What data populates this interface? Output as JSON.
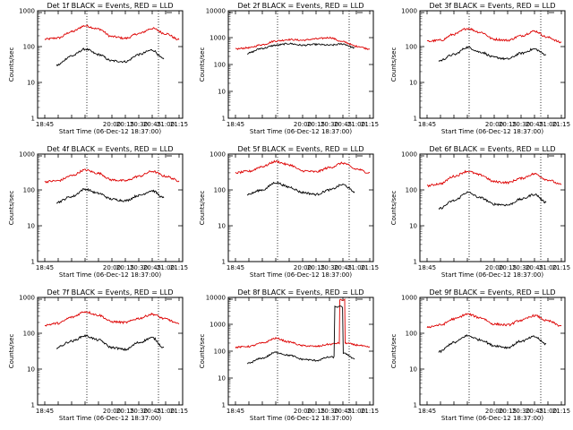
{
  "figure": {
    "time_axis_min": "18:37",
    "time_axis_max": "21:19",
    "x_ticks": [
      "18:45",
      "20:00",
      "20:15",
      "20:30",
      "20:45",
      "21:00",
      "21:15"
    ],
    "y_ticks": [
      "1",
      "10",
      "100",
      "1000"
    ],
    "ylabel": "Counts/sec",
    "xlabel": "Start Time (06-Dec-12 18:37:00)",
    "markers": [
      "19:32",
      "20:52"
    ],
    "colors": {
      "events": "#000000",
      "lld": "#dd0000"
    }
  },
  "chart_data": [
    {
      "type": "line",
      "det": "1f",
      "title": "Det 1f BLACK = Events, RED = LLD",
      "xlabel": "Start Time (06-Dec-12 18:37:00)",
      "ylabel": "Counts/sec",
      "ylim": [
        1,
        1000
      ],
      "series": [
        {
          "name": "LLD",
          "color": "#dd0000",
          "x": [
            "18:45",
            "19:00",
            "19:15",
            "19:30",
            "19:45",
            "20:00",
            "20:15",
            "20:30",
            "20:45",
            "21:00",
            "21:15"
          ],
          "values": [
            160,
            175,
            260,
            380,
            310,
            190,
            170,
            230,
            320,
            230,
            155
          ]
        },
        {
          "name": "Events",
          "color": "#000000",
          "x": [
            "18:58",
            "19:15",
            "19:30",
            "19:45",
            "20:00",
            "20:15",
            "20:30",
            "20:45",
            "20:58"
          ],
          "values": [
            30,
            55,
            85,
            60,
            40,
            38,
            60,
            80,
            45
          ]
        }
      ]
    },
    {
      "type": "line",
      "det": "2f",
      "title": "Det 2f BLACK = Events, RED = LLD",
      "xlabel": "Start Time (06-Dec-12 18:37:00)",
      "ylabel": "Counts/sec",
      "ylim": [
        1,
        10000
      ],
      "series": [
        {
          "name": "LLD",
          "color": "#dd0000",
          "x": [
            "18:45",
            "19:00",
            "19:15",
            "19:30",
            "19:45",
            "20:00",
            "20:15",
            "20:30",
            "20:45",
            "21:00",
            "21:15"
          ],
          "values": [
            380,
            420,
            550,
            750,
            850,
            800,
            900,
            1000,
            700,
            480,
            380
          ]
        },
        {
          "name": "Events",
          "color": "#000000",
          "x": [
            "18:58",
            "19:15",
            "19:30",
            "19:45",
            "20:00",
            "20:15",
            "20:30",
            "20:45",
            "20:58"
          ],
          "values": [
            260,
            400,
            520,
            600,
            520,
            560,
            520,
            580,
            420
          ]
        }
      ]
    },
    {
      "type": "line",
      "det": "3f",
      "title": "Det 3f BLACK = Events, RED = LLD",
      "xlabel": "Start Time (06-Dec-12 18:37:00)",
      "ylabel": "Counts/sec",
      "ylim": [
        1,
        1000
      ],
      "series": [
        {
          "name": "LLD",
          "color": "#dd0000",
          "x": [
            "18:45",
            "19:00",
            "19:15",
            "19:30",
            "19:45",
            "20:00",
            "20:15",
            "20:30",
            "20:45",
            "21:00",
            "21:15"
          ],
          "values": [
            140,
            150,
            220,
            320,
            250,
            160,
            150,
            200,
            270,
            180,
            130
          ]
        },
        {
          "name": "Events",
          "color": "#000000",
          "x": [
            "18:58",
            "19:15",
            "19:30",
            "19:45",
            "20:00",
            "20:15",
            "20:30",
            "20:45",
            "20:58"
          ],
          "values": [
            40,
            60,
            95,
            70,
            50,
            45,
            65,
            85,
            60
          ]
        }
      ]
    },
    {
      "type": "line",
      "det": "4f",
      "title": "Det 4f BLACK = Events, RED = LLD",
      "xlabel": "Start Time (06-Dec-12 18:37:00)",
      "ylabel": "Counts/sec",
      "ylim": [
        1,
        1000
      ],
      "series": [
        {
          "name": "LLD",
          "color": "#dd0000",
          "x": [
            "18:45",
            "19:00",
            "19:15",
            "19:30",
            "19:45",
            "20:00",
            "20:15",
            "20:30",
            "20:45",
            "21:00",
            "21:15"
          ],
          "values": [
            170,
            180,
            250,
            360,
            290,
            190,
            180,
            240,
            330,
            240,
            180
          ]
        },
        {
          "name": "Events",
          "color": "#000000",
          "x": [
            "18:58",
            "19:15",
            "19:30",
            "19:45",
            "20:00",
            "20:15",
            "20:30",
            "20:45",
            "20:58"
          ],
          "values": [
            45,
            65,
            105,
            80,
            55,
            50,
            70,
            95,
            60
          ]
        }
      ]
    },
    {
      "type": "line",
      "det": "5f",
      "title": "Det 5f BLACK = Events, RED = LLD",
      "xlabel": "Start Time (06-Dec-12 18:37:00)",
      "ylabel": "Counts/sec",
      "ylim": [
        1,
        1000
      ],
      "series": [
        {
          "name": "LLD",
          "color": "#dd0000",
          "x": [
            "18:45",
            "19:00",
            "19:15",
            "19:30",
            "19:45",
            "20:00",
            "20:15",
            "20:30",
            "20:45",
            "21:00",
            "21:15"
          ],
          "values": [
            300,
            330,
            450,
            620,
            500,
            340,
            320,
            420,
            560,
            380,
            300
          ]
        },
        {
          "name": "Events",
          "color": "#000000",
          "x": [
            "18:58",
            "19:15",
            "19:30",
            "19:45",
            "20:00",
            "20:15",
            "20:30",
            "20:45",
            "20:58"
          ],
          "values": [
            75,
            100,
            160,
            120,
            85,
            75,
            100,
            140,
            90
          ]
        }
      ]
    },
    {
      "type": "line",
      "det": "6f",
      "title": "Det 6f BLACK = Events, RED = LLD",
      "xlabel": "Start Time (06-Dec-12 18:37:00)",
      "ylabel": "Counts/sec",
      "ylim": [
        1,
        1000
      ],
      "series": [
        {
          "name": "LLD",
          "color": "#dd0000",
          "x": [
            "18:45",
            "19:00",
            "19:15",
            "19:30",
            "19:45",
            "20:00",
            "20:15",
            "20:30",
            "20:45",
            "21:00",
            "21:15"
          ],
          "values": [
            130,
            150,
            240,
            330,
            260,
            170,
            160,
            210,
            280,
            190,
            140
          ]
        },
        {
          "name": "Events",
          "color": "#000000",
          "x": [
            "18:58",
            "19:15",
            "19:30",
            "19:45",
            "20:00",
            "20:15",
            "20:30",
            "20:45",
            "20:58"
          ],
          "values": [
            30,
            50,
            85,
            60,
            40,
            38,
            55,
            75,
            45
          ]
        }
      ]
    },
    {
      "type": "line",
      "det": "7f",
      "title": "Det 7f BLACK = Events, RED = LLD",
      "xlabel": "Start Time (06-Dec-12 18:37:00)",
      "ylabel": "Counts/sec",
      "ylim": [
        1,
        1000
      ],
      "series": [
        {
          "name": "LLD",
          "color": "#dd0000",
          "x": [
            "18:45",
            "19:00",
            "19:15",
            "19:30",
            "19:45",
            "20:00",
            "20:15",
            "20:30",
            "20:45",
            "21:00",
            "21:15"
          ],
          "values": [
            170,
            190,
            280,
            400,
            320,
            210,
            200,
            260,
            340,
            250,
            180
          ]
        },
        {
          "name": "Events",
          "color": "#000000",
          "x": [
            "18:58",
            "19:15",
            "19:30",
            "19:45",
            "20:00",
            "20:15",
            "20:30",
            "20:45",
            "20:58"
          ],
          "values": [
            40,
            60,
            85,
            65,
            40,
            35,
            55,
            75,
            40
          ]
        }
      ]
    },
    {
      "type": "line",
      "det": "8f",
      "title": "Det 8f BLACK = Events, RED = LLD",
      "xlabel": "Start Time (06-Dec-12 18:37:00)",
      "ylabel": "Counts/sec",
      "ylim": [
        1,
        10000
      ],
      "series": [
        {
          "name": "LLD",
          "color": "#dd0000",
          "x": [
            "18:45",
            "19:00",
            "19:15",
            "19:30",
            "19:45",
            "20:00",
            "20:15",
            "20:30",
            "20:41",
            "20:42",
            "20:47",
            "20:48",
            "21:00",
            "21:15"
          ],
          "values": [
            140,
            150,
            200,
            300,
            220,
            160,
            150,
            180,
            200,
            8000,
            8000,
            200,
            170,
            140
          ]
        },
        {
          "name": "Events",
          "color": "#000000",
          "x": [
            "18:58",
            "19:15",
            "19:30",
            "19:45",
            "20:00",
            "20:15",
            "20:30",
            "20:42",
            "20:48",
            "20:58"
          ],
          "values": [
            35,
            55,
            90,
            70,
            50,
            45,
            60,
            4500,
            80,
            50
          ]
        }
      ]
    },
    {
      "type": "line",
      "det": "9f",
      "title": "Det 9f BLACK = Events, RED = LLD",
      "xlabel": "Start Time (06-Dec-12 18:37:00)",
      "ylabel": "Counts/sec",
      "ylim": [
        1,
        1000
      ],
      "series": [
        {
          "name": "LLD",
          "color": "#dd0000",
          "x": [
            "18:45",
            "19:00",
            "19:15",
            "19:30",
            "19:45",
            "20:00",
            "20:15",
            "20:30",
            "20:45",
            "21:00",
            "21:15"
          ],
          "values": [
            150,
            170,
            250,
            340,
            270,
            180,
            170,
            230,
            310,
            220,
            160
          ]
        },
        {
          "name": "Events",
          "color": "#000000",
          "x": [
            "18:58",
            "19:15",
            "19:30",
            "19:45",
            "20:00",
            "20:15",
            "20:30",
            "20:45",
            "20:58"
          ],
          "values": [
            30,
            55,
            85,
            65,
            45,
            40,
            60,
            80,
            50
          ]
        }
      ]
    }
  ]
}
